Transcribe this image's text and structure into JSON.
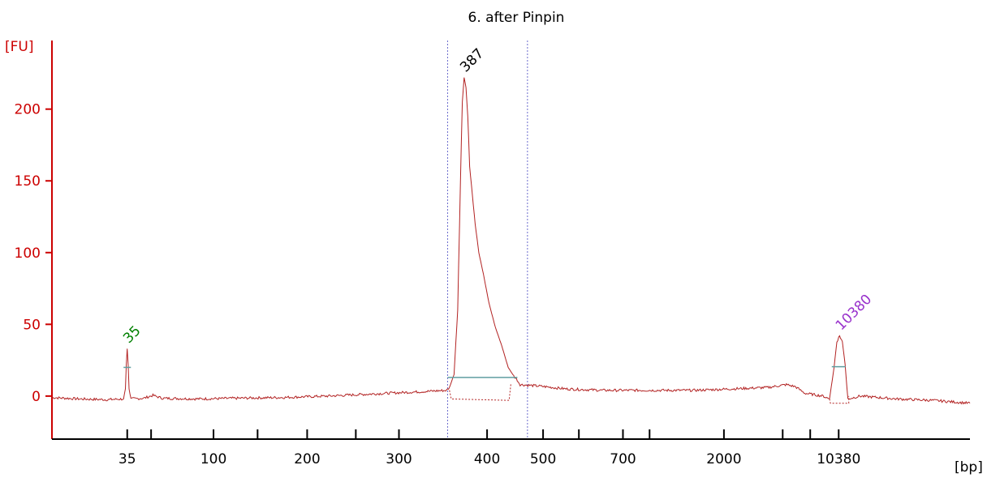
{
  "chart_data": {
    "type": "line",
    "title": "6. after Pinpin",
    "ylabel": "[FU]",
    "xlabel": "[bp]",
    "ylim": [
      -30,
      245
    ],
    "yticks": [
      0,
      50,
      100,
      150,
      200
    ],
    "x_axis_labels": [
      {
        "pos": 0.082,
        "label": "35"
      },
      {
        "pos": 0.176,
        "label": "100"
      },
      {
        "pos": 0.278,
        "label": "200"
      },
      {
        "pos": 0.378,
        "label": "300"
      },
      {
        "pos": 0.474,
        "label": "400"
      },
      {
        "pos": 0.535,
        "label": "500"
      },
      {
        "pos": 0.622,
        "label": "700"
      },
      {
        "pos": 0.732,
        "label": "2000"
      },
      {
        "pos": 0.857,
        "label": "10380"
      }
    ],
    "x_minor_ticks": [
      0.108,
      0.224,
      0.331,
      0.574,
      0.651,
      0.796,
      0.826
    ],
    "series": [
      {
        "name": "",
        "points": [
          [
            0,
            -1
          ],
          [
            0.03,
            -2
          ],
          [
            0.06,
            -2.5
          ],
          [
            0.078,
            -2
          ],
          [
            0.08,
            5
          ],
          [
            0.081,
            22
          ],
          [
            0.082,
            33
          ],
          [
            0.083,
            22
          ],
          [
            0.084,
            5
          ],
          [
            0.086,
            -2
          ],
          [
            0.1,
            -1.5
          ],
          [
            0.11,
            0.5
          ],
          [
            0.12,
            -1.5
          ],
          [
            0.16,
            -2
          ],
          [
            0.2,
            -1.5
          ],
          [
            0.25,
            -1
          ],
          [
            0.3,
            0
          ],
          [
            0.35,
            1.5
          ],
          [
            0.4,
            3
          ],
          [
            0.43,
            4
          ],
          [
            0.433,
            6
          ],
          [
            0.438,
            15
          ],
          [
            0.442,
            60
          ],
          [
            0.445,
            150
          ],
          [
            0.447,
            205
          ],
          [
            0.449,
            222
          ],
          [
            0.451,
            215
          ],
          [
            0.453,
            195
          ],
          [
            0.455,
            160
          ],
          [
            0.458,
            140
          ],
          [
            0.461,
            120
          ],
          [
            0.465,
            100
          ],
          [
            0.47,
            85
          ],
          [
            0.476,
            65
          ],
          [
            0.483,
            48
          ],
          [
            0.49,
            35
          ],
          [
            0.497,
            20
          ],
          [
            0.503,
            14
          ],
          [
            0.507,
            11
          ],
          [
            0.51,
            8
          ],
          [
            0.53,
            7
          ],
          [
            0.56,
            5
          ],
          [
            0.6,
            4
          ],
          [
            0.65,
            4
          ],
          [
            0.7,
            4
          ],
          [
            0.74,
            5
          ],
          [
            0.78,
            6
          ],
          [
            0.8,
            8
          ],
          [
            0.81,
            6.5
          ],
          [
            0.82,
            2
          ],
          [
            0.84,
            0
          ],
          [
            0.847,
            -2
          ],
          [
            0.852,
            20
          ],
          [
            0.855,
            38
          ],
          [
            0.858,
            42
          ],
          [
            0.861,
            38
          ],
          [
            0.864,
            22
          ],
          [
            0.867,
            -2
          ],
          [
            0.88,
            0
          ],
          [
            0.92,
            -2
          ],
          [
            0.96,
            -3
          ],
          [
            1.0,
            -5
          ]
        ],
        "color": "#b22222"
      }
    ],
    "peaks": [
      {
        "label": "35",
        "x": 0.082,
        "y": 33,
        "color": "#008000"
      },
      {
        "label": "387",
        "x": 0.449,
        "y": 222,
        "color": "#000000"
      },
      {
        "label": "10380",
        "x": 0.858,
        "y": 42,
        "color": "#9932cc"
      }
    ],
    "region_markers": [
      0.431,
      0.518
    ],
    "colors": {
      "axis": "#cc0000",
      "trace": "#b22222",
      "baseline": "#5f9ea0",
      "marker": "#6a6acd",
      "bottom_axis": "#000000"
    }
  }
}
